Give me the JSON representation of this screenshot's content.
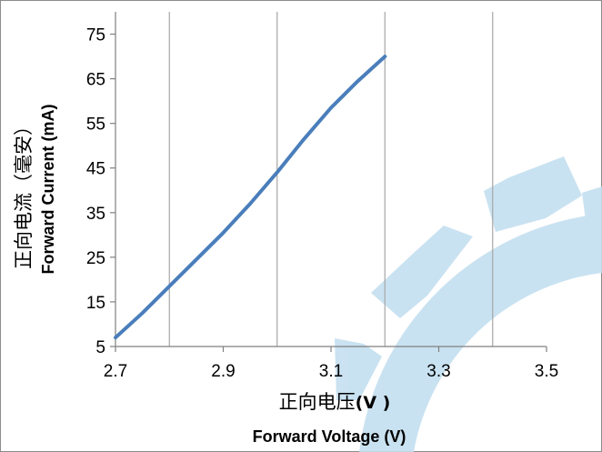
{
  "chart_data": {
    "type": "line",
    "xlabel_cn": "正向电压",
    "xlabel_cn_unit": "(V )",
    "xlabel_en": "Forward Voltage (V)",
    "ylabel_cn": "正向电流（毫安）",
    "ylabel_en": "Forward Current (mA)",
    "xlim": [
      2.7,
      3.5
    ],
    "ylim": [
      5,
      80
    ],
    "x_ticks": [
      "2.7",
      "2.9",
      "3.1",
      "3.3",
      "3.5"
    ],
    "y_ticks": [
      "5",
      "15",
      "25",
      "35",
      "45",
      "55",
      "65",
      "75"
    ],
    "x_tick_values": [
      2.7,
      2.9,
      3.1,
      3.3,
      3.5
    ],
    "y_tick_values": [
      5,
      15,
      25,
      35,
      45,
      55,
      65,
      75
    ],
    "vertical_grid_x": [
      2.8,
      3.0,
      3.2,
      3.4
    ],
    "series": [
      {
        "color": "#4a7ebb",
        "x": [
          2.7,
          2.75,
          2.8,
          2.85,
          2.9,
          2.95,
          3.0,
          3.05,
          3.1,
          3.15,
          3.2
        ],
        "y": [
          7,
          12.5,
          18.5,
          24.5,
          30.5,
          37,
          44,
          51.5,
          58.5,
          64.5,
          70
        ]
      }
    ],
    "grid": true,
    "legend": "none"
  },
  "colors": {
    "line": "#4a7ebb",
    "grid": "#a6a6a6",
    "axis": "#808080",
    "watermark": "#c4dff0"
  }
}
